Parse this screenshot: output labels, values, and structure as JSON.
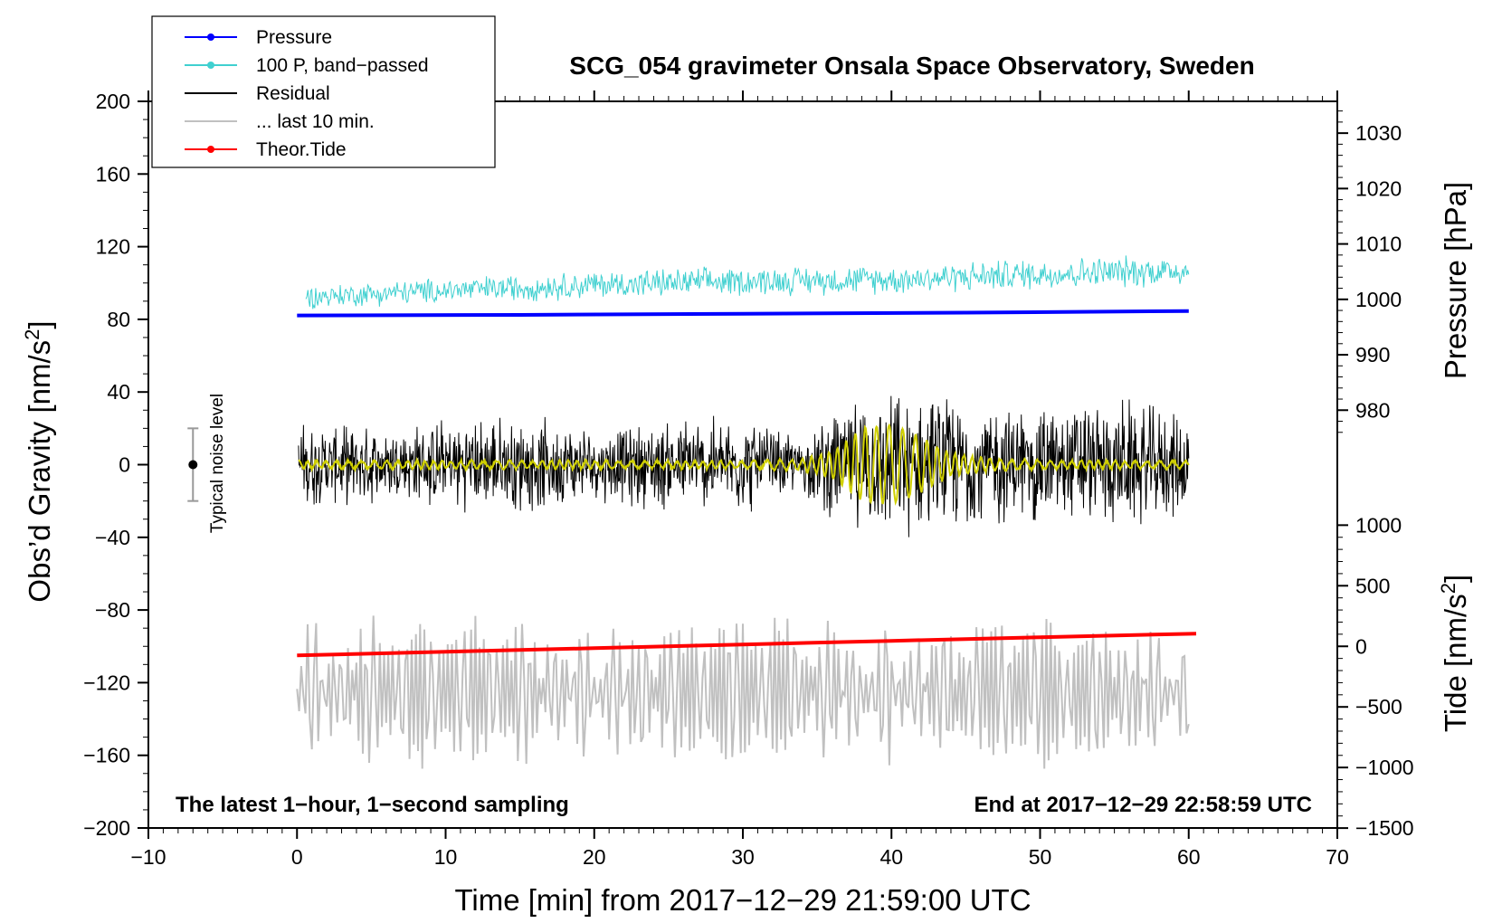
{
  "chart_data": {
    "type": "line",
    "title": "SCG_054 gravimeter Onsala Space Observatory, Sweden",
    "xlabel": "Time [min] from 2017−12−29 21:59:00 UTC",
    "ylabel": "Obs'd Gravity [nm/s²]",
    "ylabel_parts": {
      "before": "Obs’d Gravity [nm/s",
      "sup": "2",
      "after": "]"
    },
    "ylabel_right_top": "Pressure [hPa]",
    "ylabel_right_bottom": "Tide [nm/s²]",
    "ylabel_right_bottom_parts": {
      "before": "Tide [nm/s",
      "sup": "2",
      "after": "]"
    },
    "xlim": [
      -10,
      70
    ],
    "ylim": [
      -200,
      200
    ],
    "x_ticks": [
      -10,
      0,
      10,
      20,
      30,
      40,
      50,
      60,
      70
    ],
    "x_tick_labels": [
      "−10",
      "0",
      "10",
      "20",
      "30",
      "40",
      "50",
      "60",
      "70"
    ],
    "y_ticks": [
      -200,
      -160,
      -120,
      -80,
      -40,
      0,
      40,
      80,
      120,
      160,
      200
    ],
    "y_tick_labels": [
      "−200",
      "−160",
      "−120",
      "−80",
      "−40",
      "0",
      "40",
      "80",
      "120",
      "160",
      "200"
    ],
    "right_pressure_axis": {
      "label": "Pressure [hPa]",
      "ticks": [
        980,
        990,
        1000,
        1010,
        1020,
        1030
      ],
      "tick_labels": [
        "980",
        "990",
        "1000",
        "1010",
        "1020",
        "1030"
      ],
      "gravity_at_1000_hPa": 91,
      "gravity_per_hPa": 3.05
    },
    "right_tide_axis": {
      "label": "Tide [nm/s²]",
      "ticks": [
        -1500,
        -1000,
        -500,
        0,
        500,
        1000
      ],
      "tick_labels": [
        "−1500",
        "−1000",
        "−500",
        "0",
        "500",
        "1000"
      ],
      "gravity_at_0_tide": -100,
      "gravity_per_unit": 0.0667
    },
    "legend_position": "top-left",
    "legend": [
      {
        "label": "Pressure",
        "color": "#0000ff",
        "marker": true
      },
      {
        "label": "100 P, band−passed",
        "color": "#40d0d0",
        "marker": true
      },
      {
        "label": "Residual",
        "color": "#000000",
        "marker": false
      },
      {
        "label": "... last 10 min.",
        "color": "#c0c0c0",
        "marker": false
      },
      {
        "label": "Theor.Tide",
        "color": "#ff0000",
        "marker": true
      }
    ],
    "series": [
      {
        "name": "Pressure",
        "color": "#0000ff",
        "x": [
          0,
          15,
          30,
          45,
          60
        ],
        "y": [
          997.1,
          997.2,
          997.4,
          997.6,
          997.9
        ],
        "axis": "pressure"
      },
      {
        "name": "100 P, band−passed",
        "color": "#40d0d0",
        "x": [
          0,
          10,
          20,
          30,
          40,
          50,
          60
        ],
        "y": [
          92,
          96,
          99,
          101,
          102,
          105,
          107
        ],
        "amplitude": [
          7,
          8,
          9,
          9,
          9,
          10,
          10
        ]
      },
      {
        "name": "Residual",
        "color": "#000000",
        "x": [
          0,
          5,
          10,
          15,
          20,
          25,
          30,
          34,
          36,
          40,
          44,
          48,
          52,
          56,
          60
        ],
        "y": [
          0,
          0,
          0,
          0,
          0,
          0,
          0,
          0,
          0,
          0,
          0,
          0,
          0,
          0,
          0
        ],
        "amplitude": [
          18,
          17,
          20,
          22,
          16,
          21,
          22,
          12,
          25,
          32,
          30,
          27,
          28,
          29,
          22
        ]
      },
      {
        "name": "Residual (filtered)",
        "color": "#d0d000",
        "x": [
          0,
          10,
          20,
          30,
          34,
          36,
          38,
          40,
          42,
          44,
          47,
          52,
          56,
          60
        ],
        "y": [
          0,
          0,
          0,
          0,
          0,
          0,
          0,
          0,
          0,
          0,
          0,
          0,
          0,
          0
        ],
        "amplitude": [
          2,
          2,
          2,
          2,
          3,
          7,
          20,
          22,
          15,
          6,
          3,
          2,
          2,
          2
        ]
      },
      {
        "name": "... last 10 min.",
        "color": "#c0c0c0",
        "x": [
          0,
          60
        ],
        "center": -125,
        "amplitude": 38
      },
      {
        "name": "Theor.Tide",
        "color": "#ff0000",
        "x": [
          0,
          10,
          20,
          30,
          40,
          50,
          60.5
        ],
        "y": [
          -105,
          -103,
          -101,
          -99,
          -97,
          -95,
          -93
        ]
      }
    ],
    "noise_bar": {
      "label": "Typical noise level",
      "x": -7,
      "center": 0,
      "low": -20,
      "high": 20
    },
    "annotations": {
      "bottom_left": "The latest 1−hour, 1−second sampling",
      "bottom_right": "End at 2017−12−29 22:58:59 UTC"
    }
  }
}
